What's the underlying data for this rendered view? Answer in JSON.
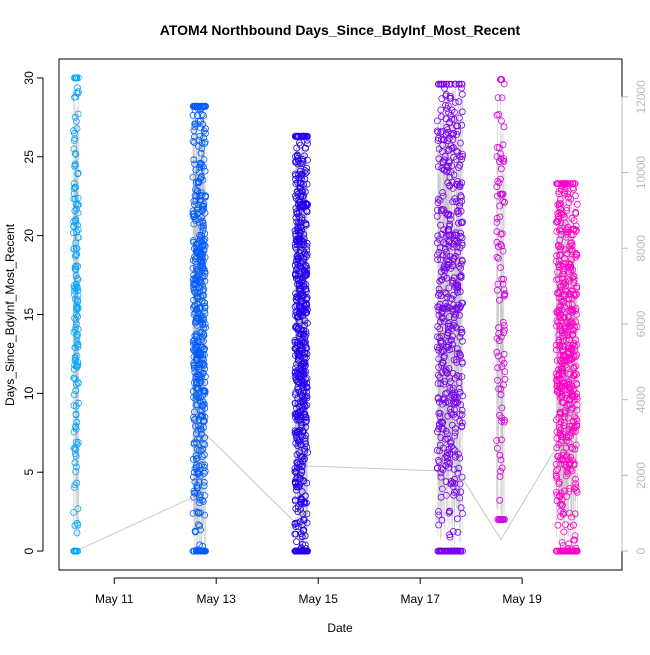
{
  "chart_data": {
    "type": "scatter",
    "title": "ATOM4 Northbound Days_Since_BdyInf_Most_Recent",
    "xlabel": "Date",
    "ylabel": "Days_Since_BdyInf_Most_Recent",
    "x_range": [
      "2023-05-09T22:00",
      "2023-05-20T23:00"
    ],
    "x_ticks": [
      {
        "date": "2023-05-11",
        "label": "May 11"
      },
      {
        "date": "2023-05-13",
        "label": "May 13"
      },
      {
        "date": "2023-05-15",
        "label": "May 15"
      },
      {
        "date": "2023-05-17",
        "label": "May 17"
      },
      {
        "date": "2023-05-19",
        "label": "May 19"
      }
    ],
    "ylim": [
      -1.2,
      31.2
    ],
    "y_ticks": [
      0,
      5,
      10,
      15,
      20,
      25,
      30
    ],
    "y2_range": [
      -500,
      13000
    ],
    "y2_ticks": [
      0,
      2000,
      4000,
      6000,
      8000,
      10000,
      12000
    ],
    "grid": false,
    "legend": "none",
    "line_color": "#c8c8c8",
    "series": [
      {
        "date_start": "2023-05-10T04:48",
        "date_end": "2023-05-10T07:12",
        "y_min": 0,
        "y_max": 30.0,
        "count": 170,
        "color": "#00a5ff"
      },
      {
        "date_start": "2023-05-12T13:00",
        "date_end": "2023-05-12T19:00",
        "y_min": 0,
        "y_max": 28.2,
        "count": 520,
        "color": "#005cff"
      },
      {
        "date_start": "2023-05-14T13:00",
        "date_end": "2023-05-14T19:00",
        "y_min": 0,
        "y_max": 26.3,
        "count": 620,
        "color": "#2200ee"
      },
      {
        "date_start": "2023-05-17T08:00",
        "date_end": "2023-05-17T20:00",
        "y_min": 0,
        "y_max": 29.6,
        "count": 560,
        "color": "#7700ee"
      },
      {
        "date_start": "2023-05-18T12:00",
        "date_end": "2023-05-18T16:00",
        "y_min": 2.0,
        "y_max": 29.9,
        "count": 110,
        "color": "#d000e0"
      },
      {
        "date_start": "2023-05-19T16:00",
        "date_end": "2023-05-20T02:00",
        "y_min": 0,
        "y_max": 23.3,
        "count": 560,
        "color": "#ff00c8"
      }
    ],
    "cumulative_line": [
      {
        "date": "2023-05-10T06:00",
        "value": 0
      },
      {
        "date": "2023-05-12T16:00",
        "value": 1500
      },
      {
        "date": "2023-05-12T17:00",
        "value": 3200
      },
      {
        "date": "2023-05-14T16:00",
        "value": 600
      },
      {
        "date": "2023-05-14T18:00",
        "value": 2250
      },
      {
        "date": "2023-05-17T18:00",
        "value": 2100
      },
      {
        "date": "2023-05-18T14:00",
        "value": 300
      },
      {
        "date": "2023-05-19T22:00",
        "value": 3300
      }
    ]
  }
}
